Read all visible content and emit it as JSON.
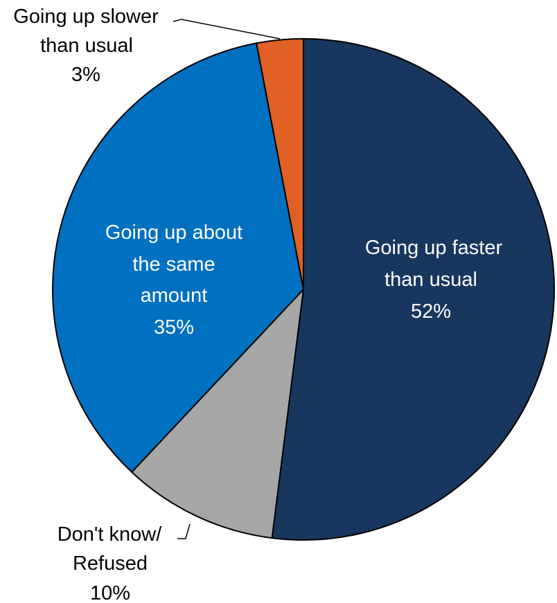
{
  "chart_data": {
    "type": "pie",
    "start": "12 o'clock",
    "direction": "clockwise",
    "slices": [
      {
        "name": "Going up faster than usual",
        "value": 52,
        "value_label": "52%",
        "label_lines": [
          "Going up faster",
          "than usual",
          "52%"
        ],
        "color": "#17375e",
        "text_color": "#ffffff"
      },
      {
        "name": "Don't know/ Refused",
        "value": 10,
        "value_label": "10%",
        "label_lines": [
          "Don't know/",
          "Refused",
          "10%"
        ],
        "color": "#a6a6a6",
        "text_color": "#000000"
      },
      {
        "name": "Going up about the same amount",
        "value": 35,
        "value_label": "35%",
        "label_lines": [
          "Going up about",
          "the same",
          "amount",
          "35%"
        ],
        "color": "#0070c0",
        "text_color": "#ffffff"
      },
      {
        "name": "Going up slower than usual",
        "value": 3,
        "value_label": "3%",
        "label_lines": [
          "Going up slower",
          "than usual",
          "3%"
        ],
        "color": "#e06026",
        "text_color": "#000000"
      }
    ],
    "slice_border_color": "#000000"
  }
}
